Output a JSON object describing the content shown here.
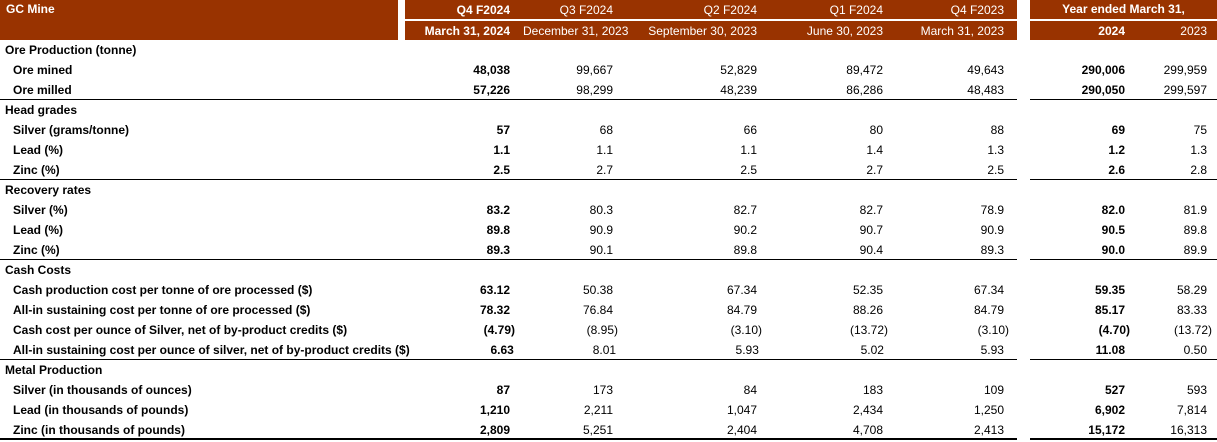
{
  "header": {
    "title": "GC Mine",
    "quarter_columns": [
      {
        "label": "Q4 F2024",
        "date": "March 31, 2024"
      },
      {
        "label": "Q3 F2024",
        "date": "December 31, 2023"
      },
      {
        "label": "Q2 F2024",
        "date": "September 30, 2023"
      },
      {
        "label": "Q1 F2024",
        "date": "June 30, 2023"
      },
      {
        "label": "Q4 F2023",
        "date": "March 31, 2023"
      }
    ],
    "year_group": {
      "label": "Year ended March 31,",
      "columns": [
        "2024",
        "2023"
      ]
    }
  },
  "table": {
    "sections": [
      {
        "title": "Ore Production (tonne)",
        "divider": "thin",
        "rows": [
          {
            "label": "Ore mined",
            "quarters": [
              "48,038",
              "99,667",
              "52,829",
              "89,472",
              "49,643"
            ],
            "years": [
              "290,006",
              "299,959"
            ]
          },
          {
            "label": "Ore milled",
            "quarters": [
              "57,226",
              "98,299",
              "48,239",
              "86,286",
              "48,483"
            ],
            "years": [
              "290,050",
              "299,597"
            ]
          }
        ]
      },
      {
        "title": "Head grades",
        "divider": "thin",
        "rows": [
          {
            "label": "Silver (grams/tonne)",
            "quarters": [
              "57",
              "68",
              "66",
              "80",
              "88"
            ],
            "years": [
              "69",
              "75"
            ]
          },
          {
            "label": "Lead (%)",
            "quarters": [
              "1.1",
              "1.1",
              "1.1",
              "1.4",
              "1.3"
            ],
            "years": [
              "1.2",
              "1.3"
            ]
          },
          {
            "label": "Zinc (%)",
            "quarters": [
              "2.5",
              "2.7",
              "2.5",
              "2.7",
              "2.5"
            ],
            "years": [
              "2.6",
              "2.8"
            ]
          }
        ]
      },
      {
        "title": "Recovery rates",
        "divider": "thin",
        "rows": [
          {
            "label": "Silver (%)",
            "quarters": [
              "83.2",
              "80.3",
              "82.7",
              "82.7",
              "78.9"
            ],
            "years": [
              "82.0",
              "81.9"
            ]
          },
          {
            "label": "Lead (%)",
            "quarters": [
              "89.8",
              "90.9",
              "90.2",
              "90.7",
              "90.9"
            ],
            "years": [
              "90.5",
              "89.8"
            ]
          },
          {
            "label": "Zinc (%)",
            "quarters": [
              "89.3",
              "90.1",
              "89.8",
              "90.4",
              "89.3"
            ],
            "years": [
              "90.0",
              "89.9"
            ]
          }
        ]
      },
      {
        "title": "Cash Costs",
        "divider": "thin",
        "rows": [
          {
            "label": "Cash production cost per tonne of ore processed ($)",
            "quarters": [
              "63.12",
              "50.38",
              "67.34",
              "52.35",
              "67.34"
            ],
            "years": [
              "59.35",
              "58.29"
            ]
          },
          {
            "label": "All-in sustaining cost per tonne of ore processed ($)",
            "quarters": [
              "78.32",
              "76.84",
              "84.79",
              "88.26",
              "84.79"
            ],
            "years": [
              "85.17",
              "83.33"
            ]
          },
          {
            "label": "Cash cost per ounce of Silver, net of by-product credits ($)",
            "quarters": [
              "(4.79)",
              "(8.95)",
              "(3.10)",
              "(13.72)",
              "(3.10)"
            ],
            "years": [
              "(4.70)",
              "(13.72)"
            ]
          },
          {
            "label": "All-in sustaining cost per ounce of silver, net of by-product credits ($)",
            "quarters": [
              "6.63",
              "8.01",
              "5.93",
              "5.02",
              "5.93"
            ],
            "years": [
              "11.08",
              "0.50"
            ]
          }
        ]
      },
      {
        "title": "Metal Production",
        "divider": "thick",
        "rows": [
          {
            "label": "Silver (in thousands of ounces)",
            "quarters": [
              "87",
              "173",
              "84",
              "183",
              "109"
            ],
            "years": [
              "527",
              "593"
            ]
          },
          {
            "label": "Lead (in thousands of pounds)",
            "quarters": [
              "1,210",
              "2,211",
              "1,047",
              "2,434",
              "1,250"
            ],
            "years": [
              "6,902",
              "7,814"
            ]
          },
          {
            "label": "Zinc (in thousands of pounds)",
            "quarters": [
              "2,809",
              "5,251",
              "2,404",
              "4,708",
              "2,413"
            ],
            "years": [
              "15,172",
              "16,313"
            ]
          }
        ]
      }
    ]
  },
  "colors": {
    "header_bg": "#993300",
    "header_text": "#FFFFFF",
    "rule": "#000000"
  }
}
